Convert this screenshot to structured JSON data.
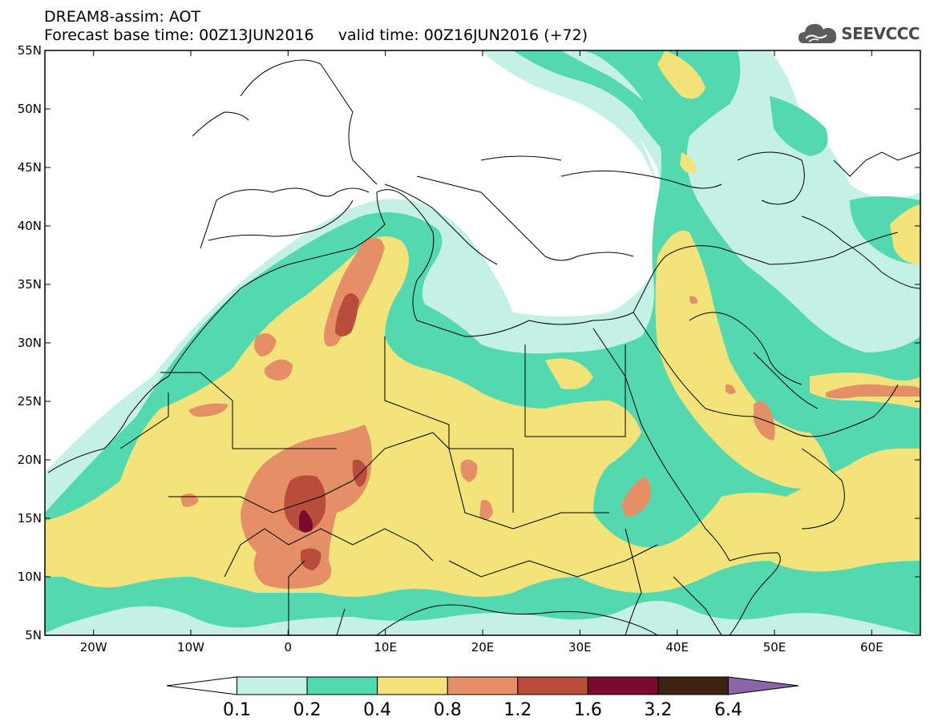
{
  "title": {
    "line1": "DREAM8-assim: AOT",
    "line2": "Forecast base time: 00Z13JUN2016     valid time: 00Z16JUN2016 (+72)"
  },
  "logo": {
    "text": "SEEVCCC",
    "icon": "cloud-icon"
  },
  "map": {
    "projection": "lat-lon",
    "lon_range": [
      -25,
      65
    ],
    "lat_range": [
      5,
      55
    ],
    "lon_ticks": [
      {
        "value": -20,
        "label": "20W"
      },
      {
        "value": -10,
        "label": "10W"
      },
      {
        "value": 0,
        "label": "0"
      },
      {
        "value": 10,
        "label": "10E"
      },
      {
        "value": 20,
        "label": "20E"
      },
      {
        "value": 30,
        "label": "30E"
      },
      {
        "value": 40,
        "label": "40E"
      },
      {
        "value": 50,
        "label": "50E"
      },
      {
        "value": 60,
        "label": "60E"
      }
    ],
    "lat_ticks": [
      {
        "value": 55,
        "label": "55N"
      },
      {
        "value": 50,
        "label": "50N"
      },
      {
        "value": 45,
        "label": "45N"
      },
      {
        "value": 40,
        "label": "40N"
      },
      {
        "value": 35,
        "label": "35N"
      },
      {
        "value": 30,
        "label": "30N"
      },
      {
        "value": 25,
        "label": "25N"
      },
      {
        "value": 20,
        "label": "20N"
      },
      {
        "value": 15,
        "label": "15N"
      },
      {
        "value": 10,
        "label": "10N"
      },
      {
        "value": 5,
        "label": "5N"
      }
    ]
  },
  "colorbar": {
    "colors": [
      "#ffffff",
      "#c4f0e6",
      "#54d8b0",
      "#f2e37a",
      "#e58f67",
      "#b84d3c",
      "#7c0a2e",
      "#3e2313",
      "#8a66a8"
    ],
    "labels": [
      "0.1",
      "0.2",
      "0.4",
      "0.8",
      "1.2",
      "1.6",
      "3.2",
      "6.4"
    ]
  }
}
